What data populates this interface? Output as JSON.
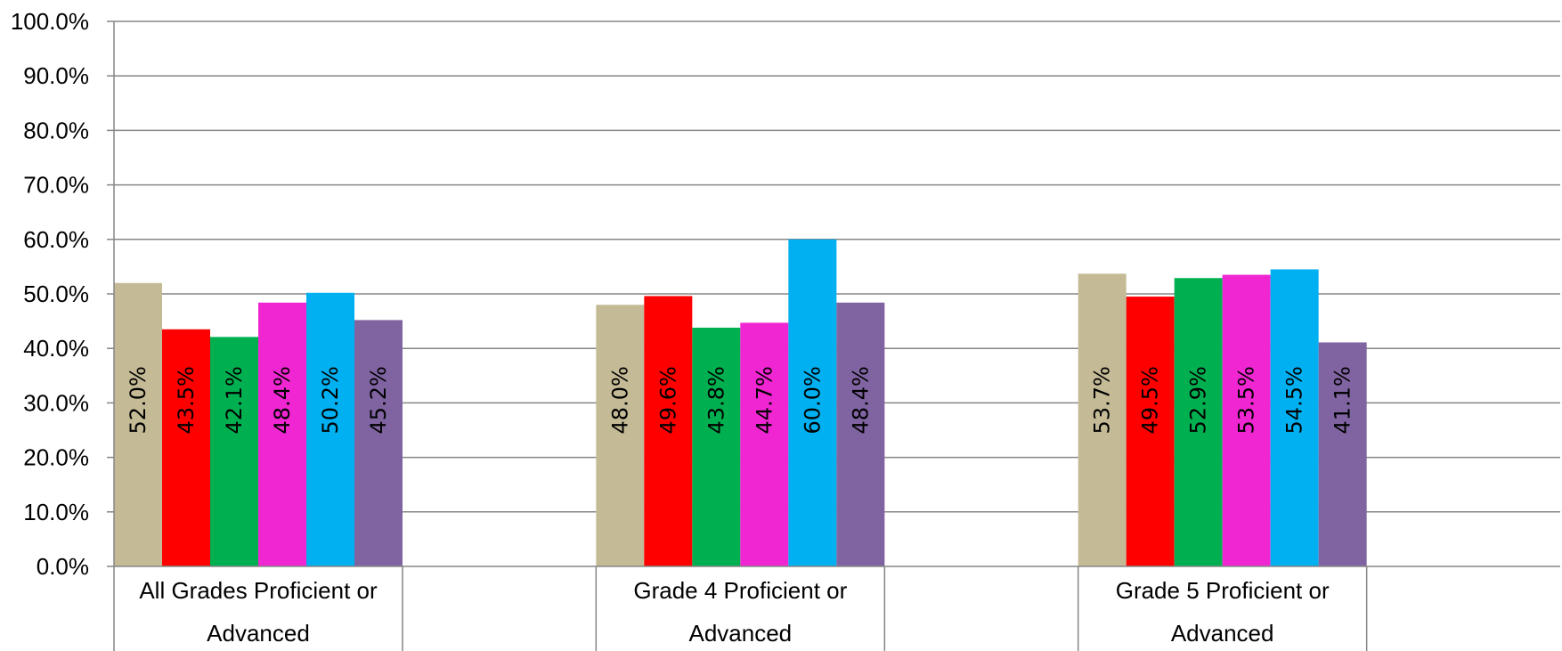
{
  "chart_data": {
    "type": "bar",
    "title": "",
    "xlabel": "",
    "ylabel": "",
    "ylim": [
      0,
      100
    ],
    "y_ticks": [
      "0.0%",
      "10.0%",
      "20.0%",
      "30.0%",
      "40.0%",
      "50.0%",
      "60.0%",
      "70.0%",
      "80.0%",
      "90.0%",
      "100.0%"
    ],
    "grid": true,
    "legend": "none",
    "categories": [
      [
        "All Grades Proficient or",
        "Advanced"
      ],
      [
        "Grade 4 Proficient or",
        "Advanced"
      ],
      [
        "Grade 5 Proficient or",
        "Advanced"
      ]
    ],
    "series": [
      {
        "color": "#c4bb96",
        "values": [
          52.0,
          48.0,
          53.7
        ],
        "labels": [
          "52.0%",
          "48.0%",
          "53.7%"
        ]
      },
      {
        "color": "#ff0000",
        "values": [
          43.5,
          49.6,
          49.5
        ],
        "labels": [
          "43.5%",
          "49.6%",
          "49.5%"
        ]
      },
      {
        "color": "#00b050",
        "values": [
          42.1,
          43.8,
          52.9
        ],
        "labels": [
          "42.1%",
          "43.8%",
          "52.9%"
        ]
      },
      {
        "color": "#f026d2",
        "values": [
          48.4,
          44.7,
          53.5
        ],
        "labels": [
          "48.4%",
          "44.7%",
          "53.5%"
        ]
      },
      {
        "color": "#00b0f0",
        "values": [
          50.2,
          60.0,
          54.5
        ],
        "labels": [
          "50.2%",
          "60.0%",
          "54.5%"
        ]
      },
      {
        "color": "#8064a2",
        "values": [
          45.2,
          48.4,
          41.1
        ],
        "labels": [
          "45.2%",
          "48.4%",
          "41.1%"
        ]
      }
    ]
  }
}
